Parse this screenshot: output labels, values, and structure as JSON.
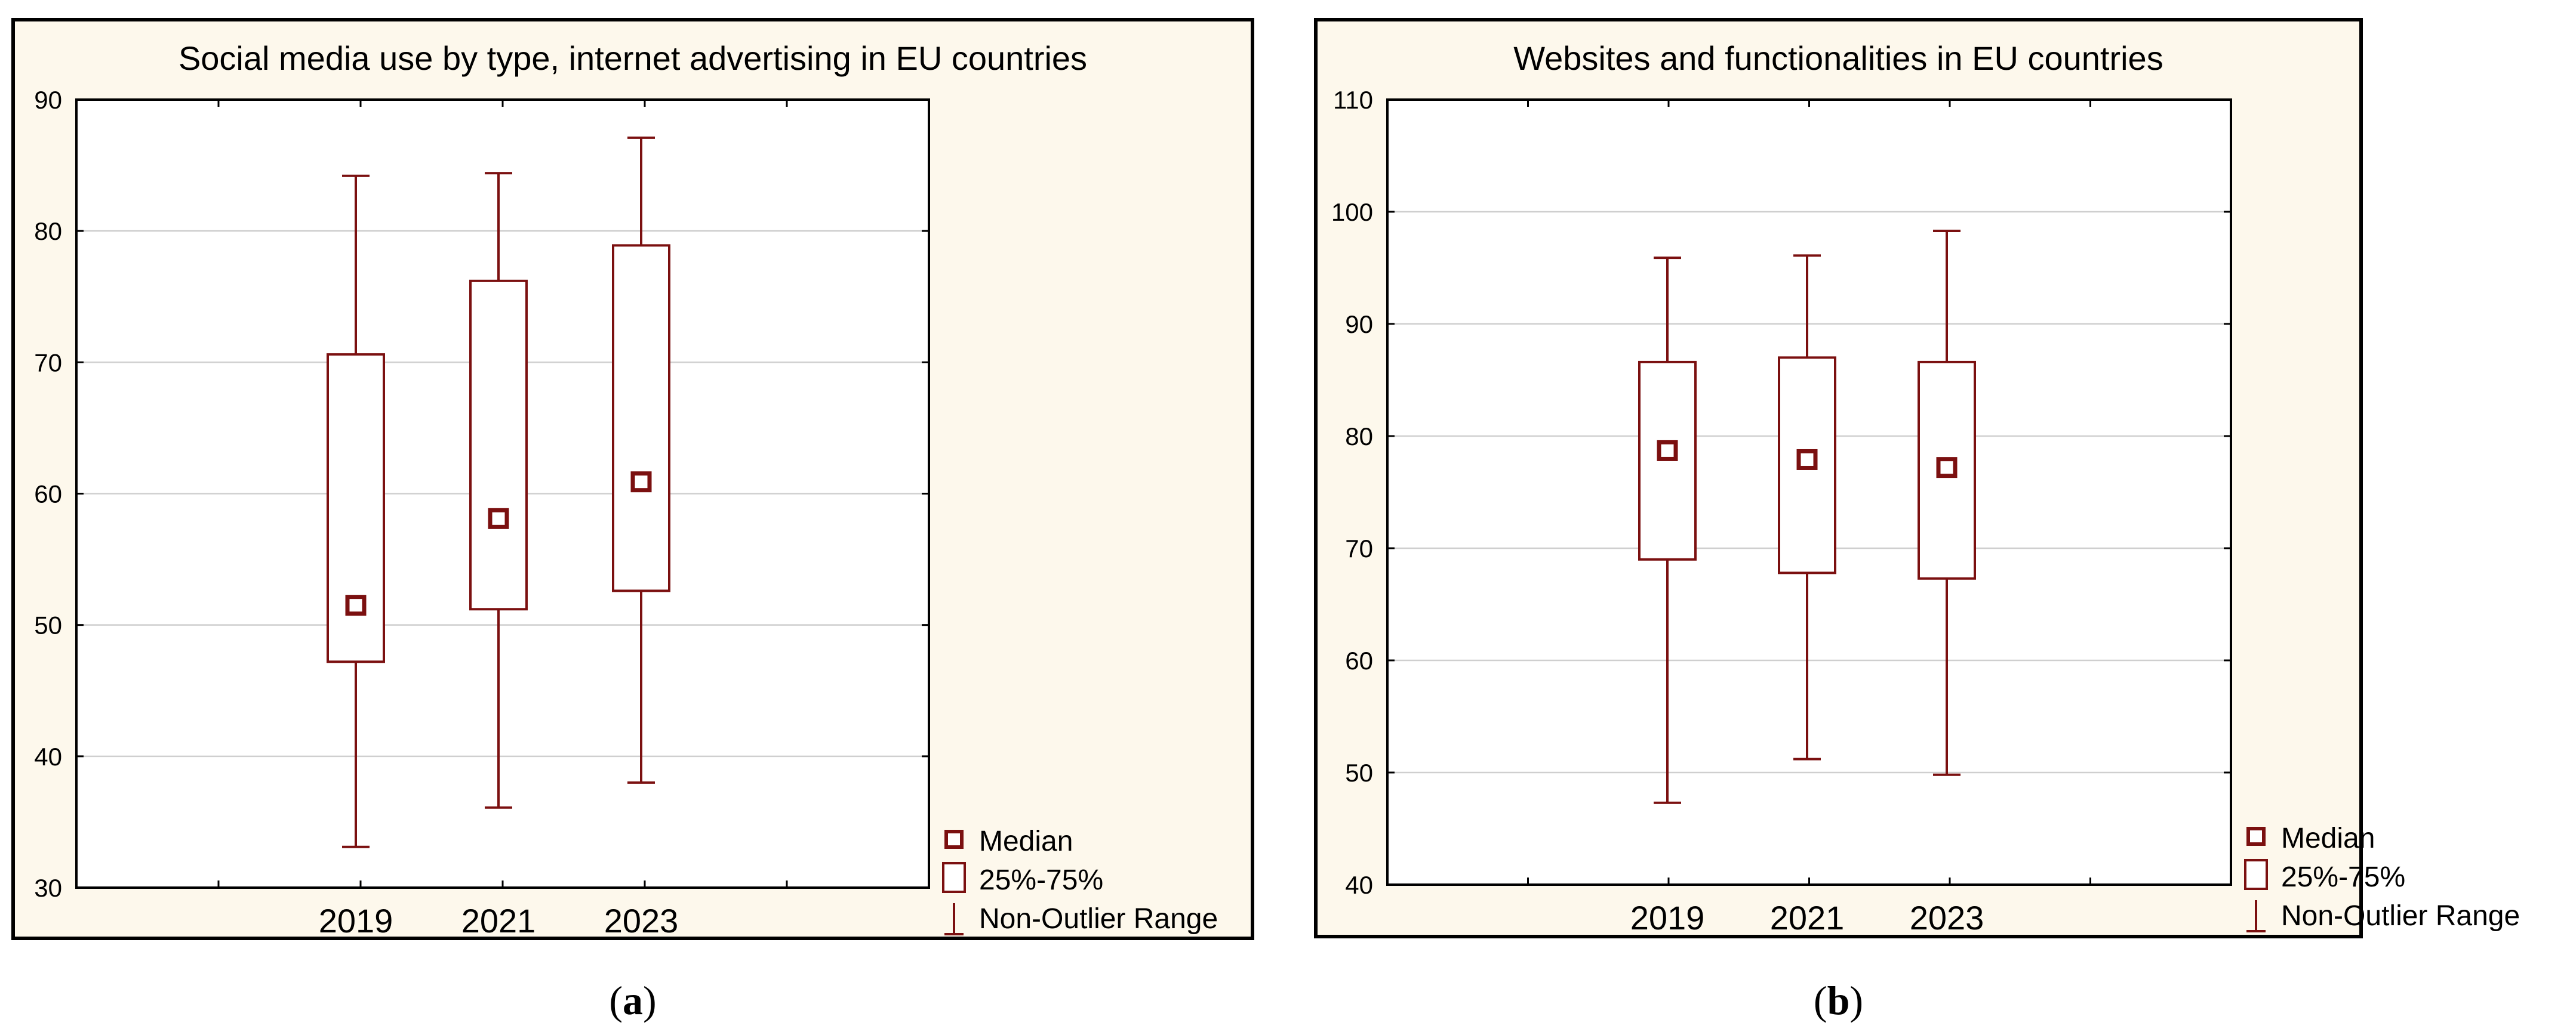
{
  "chart_data": [
    {
      "type": "boxplot",
      "panel_label": "a",
      "title": "Social media use by type, internet advertising in EU countries",
      "xlabel": "",
      "ylabel": "",
      "categories": [
        "2019",
        "2021",
        "2023"
      ],
      "ylim": [
        30,
        90
      ],
      "yticks": [
        "30",
        "40",
        "50",
        "60",
        "70",
        "80",
        "90"
      ],
      "grid": true,
      "boxes": [
        {
          "category": "2019",
          "median": 51.5,
          "q1": 47.2,
          "q3": 70.6,
          "min": 33.1,
          "max": 84.2
        },
        {
          "category": "2021",
          "median": 58.1,
          "q1": 51.2,
          "q3": 76.2,
          "min": 36.1,
          "max": 84.4
        },
        {
          "category": "2023",
          "median": 60.9,
          "q1": 52.6,
          "q3": 78.9,
          "min": 38.0,
          "max": 87.1
        }
      ],
      "legend": [
        {
          "key": "median",
          "label": "Median"
        },
        {
          "key": "box",
          "label": "25%-75%"
        },
        {
          "key": "whisker",
          "label": "Non-Outlier Range"
        }
      ],
      "legend_position": "bottom-right"
    },
    {
      "type": "boxplot",
      "panel_label": "b",
      "title": "Websites and functionalities in EU countries",
      "xlabel": "",
      "ylabel": "",
      "categories": [
        "2019",
        "2021",
        "2023"
      ],
      "ylim": [
        40,
        110
      ],
      "yticks": [
        "40",
        "50",
        "60",
        "70",
        "80",
        "90",
        "100",
        "110"
      ],
      "grid": true,
      "boxes": [
        {
          "category": "2019",
          "median": 78.7,
          "q1": 69.0,
          "q3": 86.6,
          "min": 47.3,
          "max": 95.9
        },
        {
          "category": "2021",
          "median": 77.9,
          "q1": 67.8,
          "q3": 87.0,
          "min": 51.2,
          "max": 96.1
        },
        {
          "category": "2023",
          "median": 77.2,
          "q1": 67.3,
          "q3": 86.6,
          "min": 49.8,
          "max": 98.3
        }
      ],
      "legend": [
        {
          "key": "median",
          "label": "Median"
        },
        {
          "key": "box",
          "label": "25%-75%"
        },
        {
          "key": "whisker",
          "label": "Non-Outlier Range"
        }
      ],
      "legend_position": "bottom-right"
    }
  ],
  "colors": {
    "panel_background": "#fdf8ec",
    "plot_background": "#ffffff",
    "mark": "#7b1010",
    "frame": "#000000",
    "grid": "#cfcfcf"
  }
}
